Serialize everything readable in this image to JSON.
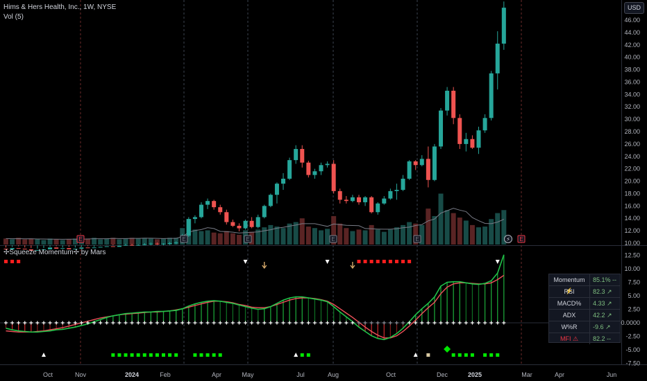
{
  "header": {
    "symbol_line": "Hims & Hers Health, Inc., 1W, NYSE",
    "volume_label": "Vol (5)",
    "indicator_title": "✢Squeeze Momentum✢ by Mars",
    "currency_button": "USD"
  },
  "colors": {
    "up": "#26a69a",
    "down": "#ef5350",
    "background": "#000000",
    "momentum_green": "#21c44a",
    "momentum_red": "#f23645",
    "squeeze_on": "#ff1e1e",
    "squeeze_off": "#00e600"
  },
  "stats_table": [
    {
      "key": "Momentum ⚡",
      "value": "85.1% --"
    },
    {
      "key": "RSI",
      "value": "82.3 ↗"
    },
    {
      "key": "MACD%",
      "value": "4.33 ↗"
    },
    {
      "key": "ADX",
      "value": "42.2 ↗"
    },
    {
      "key": "W%R",
      "value": "-9.6 ↗"
    },
    {
      "key": "MFI ⚠",
      "value": "82.2 --"
    }
  ],
  "chart_data": [
    {
      "type": "candlestick",
      "y_axis_ticks": [
        "46.00",
        "44.00",
        "42.00",
        "40.00",
        "38.00",
        "36.00",
        "34.00",
        "32.00",
        "30.00",
        "28.00",
        "26.00",
        "24.00",
        "22.00",
        "20.00",
        "18.00",
        "16.00",
        "14.00",
        "12.00",
        "10.00"
      ],
      "ylim": [
        10,
        48
      ],
      "x_axis_labels": [
        "Oct",
        "Nov",
        "2024",
        "Feb",
        "Apr",
        "May",
        "Jul",
        "Aug",
        "Oct",
        "Dec",
        "2025",
        "Mar",
        "Apr",
        "Jun"
      ],
      "earnings_markers": 7,
      "candles": [
        [
          9.1,
          9.3,
          8.8,
          9.0
        ],
        [
          9.0,
          9.4,
          8.9,
          9.2
        ],
        [
          9.2,
          9.5,
          8.9,
          9.1
        ],
        [
          9.1,
          9.3,
          8.8,
          9.0
        ],
        [
          9.0,
          9.2,
          8.6,
          8.8
        ],
        [
          8.8,
          9.1,
          8.6,
          8.9
        ],
        [
          8.9,
          9.2,
          8.7,
          9.0
        ],
        [
          9.0,
          9.4,
          8.9,
          9.3
        ],
        [
          9.3,
          9.5,
          9.0,
          9.1
        ],
        [
          9.1,
          9.3,
          8.9,
          9.2
        ],
        [
          9.2,
          9.4,
          8.9,
          9.0
        ],
        [
          9.0,
          9.3,
          8.8,
          9.1
        ],
        [
          9.1,
          9.4,
          9.0,
          9.3
        ],
        [
          9.3,
          9.5,
          9.1,
          9.2
        ],
        [
          9.2,
          9.4,
          9.0,
          9.3
        ],
        [
          9.3,
          9.6,
          9.1,
          9.4
        ],
        [
          9.4,
          9.7,
          9.2,
          9.5
        ],
        [
          9.5,
          9.8,
          9.3,
          9.4
        ],
        [
          9.4,
          9.7,
          9.2,
          9.6
        ],
        [
          9.6,
          9.9,
          9.4,
          9.7
        ],
        [
          9.7,
          9.9,
          9.5,
          9.6
        ],
        [
          9.6,
          9.8,
          9.4,
          9.7
        ],
        [
          9.7,
          10.0,
          9.5,
          9.8
        ],
        [
          9.8,
          10.1,
          9.6,
          9.9
        ],
        [
          9.9,
          10.1,
          9.7,
          9.8
        ],
        [
          9.8,
          10.0,
          9.6,
          9.9
        ],
        [
          9.9,
          10.2,
          9.7,
          10.0
        ],
        [
          10.0,
          10.3,
          9.8,
          10.1
        ],
        [
          10.2,
          11.5,
          10.0,
          11.2
        ],
        [
          11.2,
          14.2,
          11.0,
          13.9
        ],
        [
          13.9,
          14.5,
          13.2,
          14.2
        ],
        [
          14.2,
          16.6,
          14.0,
          16.2
        ],
        [
          16.2,
          17.2,
          15.5,
          16.8
        ],
        [
          16.8,
          17.0,
          15.4,
          15.8
        ],
        [
          15.8,
          16.2,
          14.6,
          15.0
        ],
        [
          15.0,
          15.4,
          13.0,
          13.4
        ],
        [
          13.4,
          13.8,
          12.6,
          12.8
        ],
        [
          12.8,
          13.2,
          11.9,
          12.4
        ],
        [
          12.4,
          13.8,
          12.2,
          13.6
        ],
        [
          13.6,
          14.2,
          12.4,
          12.6
        ],
        [
          12.6,
          14.6,
          12.4,
          14.2
        ],
        [
          14.2,
          16.2,
          14.0,
          16.0
        ],
        [
          16.0,
          18.0,
          15.8,
          17.8
        ],
        [
          17.8,
          19.8,
          16.4,
          19.6
        ],
        [
          19.6,
          21.3,
          18.6,
          20.4
        ],
        [
          20.4,
          23.8,
          20.2,
          23.4
        ],
        [
          23.4,
          25.8,
          22.8,
          25.2
        ],
        [
          25.2,
          25.8,
          22.2,
          23.0
        ],
        [
          23.0,
          23.3,
          20.6,
          21.0
        ],
        [
          21.0,
          22.0,
          20.4,
          21.6
        ],
        [
          21.6,
          23.0,
          21.0,
          22.6
        ],
        [
          22.6,
          23.2,
          22.2,
          22.8
        ],
        [
          22.8,
          23.4,
          18.0,
          18.4
        ],
        [
          18.4,
          18.8,
          16.4,
          17.0
        ],
        [
          17.0,
          17.6,
          16.4,
          16.8
        ],
        [
          16.8,
          17.8,
          16.6,
          17.4
        ],
        [
          17.4,
          17.8,
          16.2,
          16.6
        ],
        [
          16.6,
          17.6,
          16.0,
          17.4
        ],
        [
          17.4,
          17.6,
          14.8,
          15.0
        ],
        [
          15.0,
          16.6,
          14.6,
          16.4
        ],
        [
          16.4,
          17.6,
          16.2,
          17.2
        ],
        [
          17.2,
          18.8,
          17.0,
          18.4
        ],
        [
          18.4,
          19.6,
          17.0,
          18.6
        ],
        [
          18.6,
          21.0,
          18.4,
          20.4
        ],
        [
          20.4,
          23.4,
          20.2,
          23.2
        ],
        [
          23.2,
          23.4,
          21.8,
          22.6
        ],
        [
          22.6,
          24.2,
          22.4,
          23.6
        ],
        [
          23.6,
          25.6,
          19.0,
          20.2
        ],
        [
          20.2,
          26.0,
          20.0,
          25.6
        ],
        [
          25.6,
          31.8,
          25.2,
          31.4
        ],
        [
          31.4,
          35.2,
          30.6,
          34.6
        ],
        [
          34.6,
          35.2,
          29.2,
          30.2
        ],
        [
          30.2,
          30.8,
          25.2,
          26.0
        ],
        [
          26.0,
          27.8,
          24.8,
          26.8
        ],
        [
          26.8,
          27.4,
          25.2,
          25.4
        ],
        [
          25.4,
          28.8,
          24.4,
          28.2
        ],
        [
          28.2,
          30.8,
          27.8,
          30.2
        ],
        [
          30.2,
          37.8,
          29.8,
          37.4
        ],
        [
          37.4,
          44.2,
          34.8,
          42.2
        ],
        [
          42.2,
          49.0,
          41.2,
          48.0
        ]
      ],
      "volumes": [
        0.8,
        0.7,
        0.9,
        0.7,
        0.8,
        0.7,
        0.6,
        0.8,
        0.7,
        0.6,
        0.7,
        0.8,
        0.7,
        0.8,
        0.9,
        0.7,
        0.8,
        0.9,
        0.7,
        0.8,
        0.9,
        0.8,
        0.9,
        0.8,
        0.7,
        0.8,
        0.9,
        0.9,
        2.2,
        3.4,
        2.0,
        1.8,
        1.9,
        1.6,
        1.5,
        1.8,
        1.5,
        1.3,
        1.9,
        1.7,
        2.0,
        2.3,
        2.6,
        2.4,
        2.2,
        2.8,
        3.0,
        3.5,
        2.4,
        2.2,
        1.9,
        2.1,
        3.8,
        2.8,
        2.2,
        1.8,
        2.0,
        1.9,
        2.6,
        2.0,
        1.7,
        2.0,
        2.3,
        2.6,
        3.0,
        2.8,
        2.6,
        4.8,
        3.8,
        6.8,
        4.6,
        4.2,
        3.6,
        3.2,
        2.6,
        2.3,
        2.4,
        3.4,
        4.2,
        4.6
      ],
      "volume_ma": [
        0.8,
        0.78,
        0.79,
        0.77,
        0.78,
        0.74,
        0.74,
        0.72,
        0.72,
        0.7,
        0.72,
        0.72,
        0.72,
        0.74,
        0.78,
        0.78,
        0.78,
        0.82,
        0.8,
        0.8,
        0.82,
        0.82,
        0.84,
        0.84,
        0.82,
        0.8,
        0.82,
        0.82,
        1.06,
        1.64,
        1.88,
        2.0,
        2.26,
        2.14,
        1.76,
        1.72,
        1.66,
        1.54,
        1.6,
        1.64,
        1.68,
        1.84,
        1.98,
        2.18,
        2.3,
        2.46,
        2.6,
        2.78,
        2.78,
        2.78,
        2.6,
        2.42,
        2.74,
        2.66,
        2.56,
        2.54,
        2.52,
        2.14,
        2.1,
        2.06,
        2.04,
        2.04,
        2.12,
        2.24,
        2.32,
        2.54,
        2.66,
        3.16,
        3.4,
        4.2,
        4.52,
        4.84,
        4.6,
        4.4,
        3.6,
        3.18,
        2.82,
        2.78,
        3.0,
        3.38
      ],
      "volume_ylim": [
        0,
        7.4
      ]
    },
    {
      "type": "histogram",
      "title": "✢Squeeze Momentum✢ by Mars",
      "y_axis_ticks": [
        "12.50",
        "10.00",
        "7.50",
        "5.00",
        "2.50",
        "0.0000",
        "-2.50",
        "-5.00",
        "-7.50"
      ],
      "ylim": [
        -8.5,
        13.5
      ],
      "momentum": [
        -1.0,
        -1.3,
        -1.5,
        -1.6,
        -1.7,
        -1.7,
        -1.6,
        -1.5,
        -1.3,
        -1.2,
        -1.0,
        -0.8,
        -0.5,
        -0.2,
        0.2,
        0.6,
        1.0,
        1.3,
        1.5,
        1.7,
        1.8,
        1.9,
        2.0,
        2.0,
        2.1,
        2.1,
        2.2,
        2.3,
        2.6,
        3.1,
        3.5,
        3.8,
        4.0,
        4.1,
        4.0,
        3.8,
        3.6,
        3.3,
        3.0,
        2.7,
        2.5,
        2.6,
        3.0,
        3.6,
        4.2,
        4.6,
        4.8,
        4.8,
        4.6,
        4.4,
        4.2,
        3.9,
        3.0,
        2.0,
        1.1,
        0.2,
        -0.8,
        -1.6,
        -2.4,
        -2.9,
        -3.1,
        -2.7,
        -2.0,
        -1.0,
        0.2,
        1.5,
        2.6,
        3.6,
        4.8,
        6.8,
        7.5,
        7.6,
        7.6,
        7.4,
        7.2,
        7.1,
        7.3,
        7.8,
        9.2,
        12.6
      ],
      "signal_line": [
        -1.5,
        -1.6,
        -1.7,
        -1.7,
        -1.7,
        -1.6,
        -1.5,
        -1.3,
        -1.1,
        -0.9,
        -0.6,
        -0.3,
        0.0,
        0.3,
        0.6,
        0.9,
        1.1,
        1.3,
        1.5,
        1.6,
        1.7,
        1.8,
        1.9,
        2.0,
        2.0,
        2.1,
        2.2,
        2.4,
        2.6,
        2.9,
        3.2,
        3.5,
        3.8,
        4.0,
        4.0,
        3.9,
        3.7,
        3.4,
        3.2,
        2.9,
        2.8,
        2.8,
        3.0,
        3.4,
        3.8,
        4.2,
        4.5,
        4.6,
        4.6,
        4.5,
        4.3,
        4.0,
        3.4,
        2.6,
        1.8,
        1.0,
        0.1,
        -0.8,
        -1.6,
        -2.3,
        -2.8,
        -2.8,
        -2.4,
        -1.6,
        -0.6,
        0.5,
        1.7,
        2.8,
        3.8,
        5.4,
        6.6,
        7.2,
        7.4,
        7.4,
        7.3,
        7.2,
        7.2,
        7.4,
        8.0,
        8.8
      ],
      "squeeze_on_top": [
        0,
        1,
        2,
        56,
        57,
        58,
        59,
        60,
        61,
        62,
        63,
        64
      ],
      "triangles_down_top": [
        38,
        51,
        78
      ],
      "arrows_down_top": [
        41,
        55
      ],
      "triangles_up_bottom": [
        6,
        46,
        65
      ],
      "squares_green_bottom": [
        17,
        18,
        19,
        20,
        21,
        22,
        23,
        24,
        25,
        26,
        27,
        30,
        31,
        32,
        33,
        34,
        47,
        48,
        71,
        72,
        73,
        74,
        76,
        77,
        78
      ],
      "diamond_bottom": 70,
      "neutral_square_bottom": 67
    }
  ]
}
